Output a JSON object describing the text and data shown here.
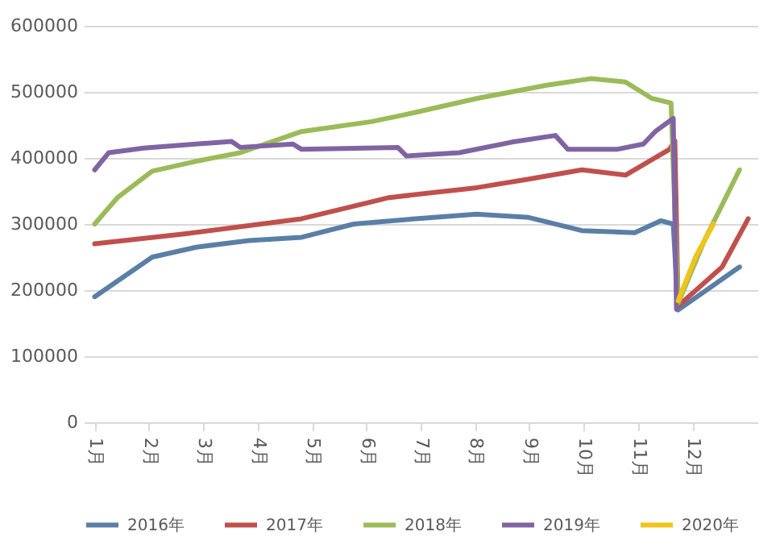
{
  "chart_data": {
    "type": "line",
    "xlim": [
      0.8,
      13.2
    ],
    "ylim": [
      0,
      600000
    ],
    "xticks": [
      {
        "value": 1,
        "label": "1月"
      },
      {
        "value": 2,
        "label": "2月"
      },
      {
        "value": 3,
        "label": "3月"
      },
      {
        "value": 4,
        "label": "4月"
      },
      {
        "value": 5,
        "label": "5月"
      },
      {
        "value": 6,
        "label": "6月"
      },
      {
        "value": 7,
        "label": "7月"
      },
      {
        "value": 8,
        "label": "8月"
      },
      {
        "value": 9,
        "label": "9月"
      },
      {
        "value": 10,
        "label": "10月"
      },
      {
        "value": 11,
        "label": "11月"
      },
      {
        "value": 12,
        "label": "12月"
      }
    ],
    "yticks": [
      0,
      100000,
      200000,
      300000,
      400000,
      500000,
      600000
    ],
    "grid": "y",
    "legend": "bottom",
    "marker": "none",
    "line_style": "solid",
    "series": [
      {
        "name": "2016年",
        "color": "#5a7fa6",
        "x": [
          1,
          2.06,
          2.87,
          3.84,
          4.81,
          5.77,
          6.9,
          8.03,
          8.99,
          9.97,
          10.94,
          11.42,
          11.65,
          11.74,
          12.87
        ],
        "values": [
          190000,
          250000,
          265000,
          275000,
          280000,
          300000,
          308000,
          315000,
          310000,
          290000,
          287000,
          305000,
          300000,
          170000,
          235000
        ]
      },
      {
        "name": "2017年",
        "color": "#c0504d",
        "x": [
          1,
          2.65,
          4.81,
          6.42,
          8.03,
          8.99,
          9.97,
          10.77,
          11.58,
          11.68,
          11.74,
          12.55,
          13.03
        ],
        "values": [
          270000,
          285000,
          308000,
          340000,
          355000,
          368000,
          382000,
          374000,
          413000,
          426000,
          176000,
          235000,
          308000
        ]
      },
      {
        "name": "2018年",
        "color": "#9bbb59",
        "x": [
          1,
          1.42,
          2.06,
          2.87,
          3.68,
          4.81,
          6.1,
          6.74,
          8.03,
          9.32,
          10.13,
          10.77,
          11.26,
          11.61,
          11.74,
          12.23,
          12.87
        ],
        "values": [
          300000,
          340000,
          380000,
          395000,
          408000,
          440000,
          455000,
          466000,
          490000,
          510000,
          520000,
          515000,
          490000,
          483000,
          180000,
          276000,
          382000
        ]
      },
      {
        "name": "2019年",
        "color": "#8064a2",
        "x": [
          1,
          1.26,
          1.9,
          3.52,
          3.68,
          4.65,
          4.81,
          6.58,
          6.74,
          7.71,
          8.68,
          9.48,
          9.71,
          10.61,
          11.1,
          11.32,
          11.65,
          11.71
        ],
        "values": [
          382000,
          408000,
          415000,
          425000,
          416000,
          421000,
          413000,
          416000,
          403000,
          408000,
          424000,
          434000,
          413000,
          413000,
          421000,
          440000,
          460000,
          171000
        ]
      },
      {
        "name": "2020年",
        "color": "#f0c419",
        "x": [
          11.74,
          12.06,
          12.39
        ],
        "values": [
          184000,
          250000,
          300000
        ]
      }
    ]
  }
}
